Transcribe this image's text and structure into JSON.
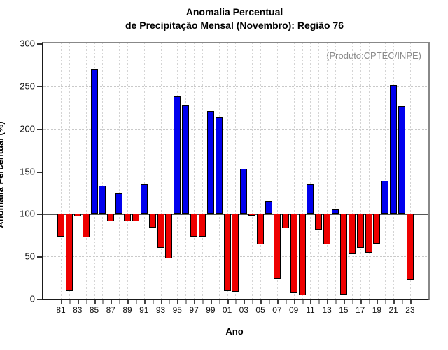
{
  "title": {
    "line1": "Anomalia Percentual",
    "line2": "de Precipitação Mensal (Novembro): Região 76"
  },
  "annotation": "(Produto:CPTEC/INPE)",
  "chart_data": {
    "type": "bar",
    "title": "Anomalia Percentual de Precipitação Mensal (Novembro): Região 76",
    "xlabel": "Ano",
    "ylabel": "Anomalia Percentual (%)",
    "ylim": [
      0,
      300
    ],
    "yticks": [
      0,
      50,
      100,
      150,
      200,
      250,
      300
    ],
    "baseline": 100,
    "grid": "dotted",
    "legend_position": "none",
    "colors": {
      "above_baseline": "#0000EE",
      "below_baseline": "#EE0000",
      "bar_outline": "#000000"
    },
    "categories": [
      "81",
      "82",
      "83",
      "84",
      "85",
      "86",
      "87",
      "88",
      "89",
      "90",
      "91",
      "92",
      "93",
      "94",
      "95",
      "96",
      "97",
      "98",
      "99",
      "00",
      "01",
      "02",
      "03",
      "04",
      "05",
      "06",
      "07",
      "08",
      "09",
      "10",
      "11",
      "12",
      "13",
      "14",
      "15",
      "16",
      "17",
      "18",
      "19",
      "20",
      "21",
      "22",
      "23"
    ],
    "labeled_ticks": [
      "81",
      "83",
      "85",
      "87",
      "89",
      "91",
      "93",
      "95",
      "97",
      "99",
      "01",
      "03",
      "05",
      "07",
      "09",
      "11",
      "13",
      "15",
      "17",
      "19",
      "21",
      "23"
    ],
    "values": [
      73,
      9,
      97,
      72,
      270,
      133,
      91,
      124,
      91,
      91,
      135,
      84,
      60,
      48,
      238,
      228,
      73,
      73,
      220,
      214,
      9,
      8,
      153,
      98,
      64,
      115,
      24,
      83,
      7,
      4,
      135,
      81,
      64,
      105,
      5,
      53,
      60,
      54,
      65,
      139,
      251,
      226,
      22
    ]
  }
}
